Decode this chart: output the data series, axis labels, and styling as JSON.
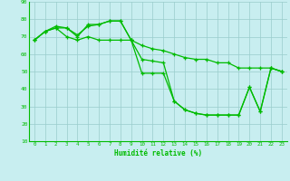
{
  "x": [
    0,
    1,
    2,
    3,
    4,
    5,
    6,
    7,
    8,
    9,
    10,
    11,
    12,
    13,
    14,
    15,
    16,
    17,
    18,
    19,
    20,
    21,
    22,
    23
  ],
  "series1": [
    68,
    73,
    76,
    75,
    71,
    76,
    77,
    79,
    79,
    68,
    49,
    49,
    49,
    33,
    28,
    26,
    25,
    25,
    25,
    25,
    41,
    27,
    52,
    50
  ],
  "series2": [
    68,
    73,
    75,
    75,
    70,
    77,
    77,
    79,
    79,
    68,
    57,
    56,
    55,
    33,
    28,
    26,
    25,
    25,
    25,
    25,
    41,
    27,
    52,
    50
  ],
  "series3": [
    68,
    73,
    75,
    70,
    68,
    70,
    68,
    68,
    68,
    68,
    65,
    63,
    62,
    60,
    58,
    57,
    57,
    55,
    55,
    52,
    52,
    52,
    52,
    50
  ],
  "line_color": "#00bb00",
  "bg_color": "#c8eef0",
  "grid_color": "#99cccc",
  "xlabel": "Humidité relative (%)",
  "ylim": [
    10,
    90
  ],
  "xlim": [
    -0.5,
    23.5
  ],
  "yticks": [
    10,
    20,
    30,
    40,
    50,
    60,
    70,
    80,
    90
  ],
  "xticks": [
    0,
    1,
    2,
    3,
    4,
    5,
    6,
    7,
    8,
    9,
    10,
    11,
    12,
    13,
    14,
    15,
    16,
    17,
    18,
    19,
    20,
    21,
    22,
    23
  ]
}
